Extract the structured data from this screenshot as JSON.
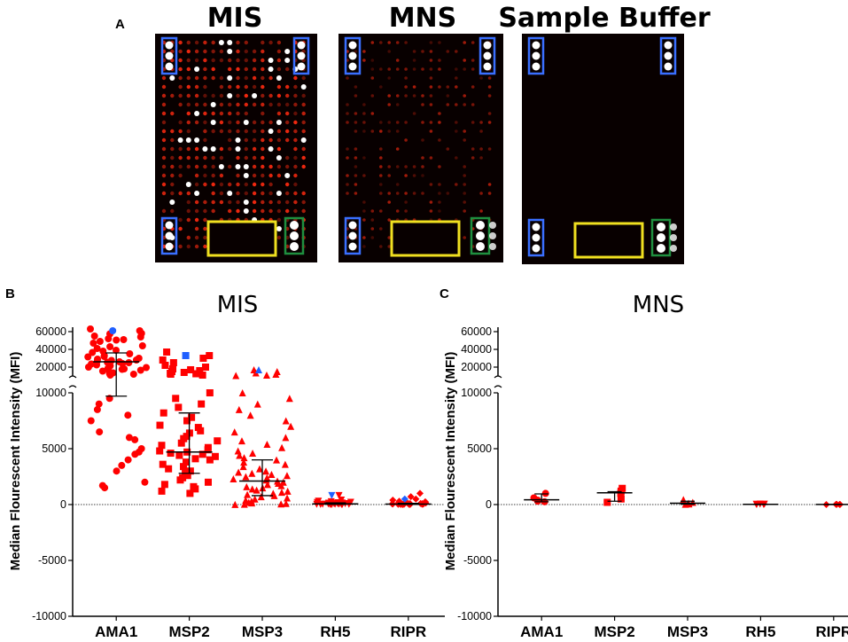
{
  "panel_a": {
    "letter": "A",
    "arrays": [
      {
        "title": "MIS",
        "id": "mis"
      },
      {
        "title": "MNS",
        "id": "mns"
      },
      {
        "title": "Sample Buffer",
        "id": "buffer"
      }
    ],
    "colors": {
      "background": "#080000",
      "spot": "#ff2a10",
      "spot_bright": "#ffffff",
      "reference_box": "#3a6fff",
      "blank_box": "#f0e020",
      "control_box": "#1f8f3f"
    }
  },
  "chart_data": [
    {
      "type": "scatter",
      "panel": "B",
      "title": "MIS",
      "ylabel": "Median Flourescent Intensity (MFI)",
      "categories": [
        "AMA1",
        "MSP2",
        "MSP3",
        "RH5",
        "RIPR"
      ],
      "markers": [
        "circle",
        "square",
        "triangle-up",
        "triangle-down",
        "diamond"
      ],
      "colors": {
        "points": "#ff0000",
        "highlight": "#1f5fff",
        "summary": "#000000"
      },
      "ylim_lower": [
        -10000,
        10000
      ],
      "yticks_lower": [
        -10000,
        -5000,
        0,
        5000,
        10000
      ],
      "ylim_upper": [
        10000,
        65000
      ],
      "yticks_upper": [
        20000,
        40000,
        60000
      ],
      "median": [
        26000,
        4700,
        2100,
        60,
        40
      ],
      "iqr_low": [
        9700,
        2800,
        800,
        20,
        10
      ],
      "iqr_high": [
        36000,
        8200,
        4000,
        150,
        110
      ],
      "points": [
        [
          61000,
          58000,
          63000,
          57500,
          54000,
          55000,
          52000,
          50500,
          51000,
          49000,
          47000,
          44000,
          43000,
          41000,
          39000,
          38000,
          36500,
          35000,
          33000,
          32000,
          31500,
          30000,
          29000,
          28000,
          27500,
          27000,
          26000,
          25500,
          25000,
          24000,
          23500,
          22500,
          21500,
          20000,
          19500,
          18500,
          18000,
          17500,
          16500,
          15500,
          14500,
          13500,
          12500,
          12000,
          11000,
          9500,
          9000,
          8500,
          8000,
          7500,
          6500,
          6000,
          5800,
          5000,
          4700,
          4500,
          4000,
          3500,
          3000,
          2000,
          1700,
          1500
        ],
        [
          37000,
          33000,
          30000,
          28000,
          25000,
          22000,
          20000,
          18000,
          17000,
          16000,
          15000,
          14000,
          13000,
          12500,
          12000,
          11000,
          10000,
          9500,
          9000,
          8700,
          8200,
          7800,
          7500,
          7100,
          6900,
          6600,
          6400,
          6100,
          5900,
          5700,
          5500,
          5300,
          5100,
          4900,
          4800,
          4700,
          4600,
          4500,
          4400,
          4300,
          4100,
          4000,
          3800,
          3600,
          3400,
          3200,
          3000,
          2800,
          2600,
          2400,
          2200,
          2000,
          1800,
          1600,
          1400,
          1200,
          1000
        ],
        [
          17000,
          15000,
          13500,
          12000,
          11000,
          10500,
          10000,
          9500,
          9000,
          8500,
          8000,
          7500,
          7000,
          6500,
          6000,
          5700,
          5400,
          5100,
          4800,
          4600,
          4400,
          4200,
          4000,
          3800,
          3600,
          3400,
          3200,
          3000,
          2900,
          2800,
          2700,
          2600,
          2500,
          2400,
          2300,
          2200,
          2100,
          2000,
          1900,
          1800,
          1700,
          1600,
          1500,
          1400,
          1300,
          1200,
          1100,
          1000,
          900,
          800,
          700,
          600,
          500,
          400,
          300,
          200,
          150,
          100,
          60,
          30,
          10
        ],
        [
          800,
          400,
          300,
          250,
          200,
          180,
          160,
          140,
          120,
          110,
          100,
          90,
          80,
          70,
          60,
          50,
          45,
          40,
          35,
          30,
          25,
          20,
          15,
          10,
          8,
          5,
          3,
          0
        ],
        [
          1000,
          700,
          500,
          400,
          300,
          250,
          200,
          180,
          160,
          140,
          120,
          100,
          90,
          80,
          70,
          60,
          50,
          40,
          30,
          25,
          20,
          15,
          10,
          5,
          0
        ]
      ],
      "highlight_points": [
        [
          61000
        ],
        [
          33000
        ],
        [
          17000
        ],
        [
          800
        ],
        [
          500
        ]
      ]
    },
    {
      "type": "scatter",
      "panel": "C",
      "title": "MNS",
      "ylabel": "Median Flourescent Intensity (MFI)",
      "categories": [
        "AMA1",
        "MSP2",
        "MSP3",
        "RH5",
        "RIPR"
      ],
      "markers": [
        "circle",
        "square",
        "triangle-up",
        "triangle-down",
        "diamond"
      ],
      "colors": {
        "points": "#ff0000",
        "summary": "#000000"
      },
      "ylim_lower": [
        -10000,
        10000
      ],
      "yticks_lower": [
        -10000,
        -5000,
        0,
        5000,
        10000
      ],
      "ylim_upper": [
        10000,
        65000
      ],
      "yticks_upper": [
        20000,
        40000,
        60000
      ],
      "median": [
        430,
        1050,
        120,
        20,
        10
      ],
      "iqr_low": [
        250,
        300,
        30,
        5,
        0
      ],
      "iqr_high": [
        950,
        1150,
        300,
        40,
        20
      ],
      "points": [
        [
          1000,
          600,
          400,
          300,
          250
        ],
        [
          1450,
          1200,
          1000,
          500,
          200
        ],
        [
          450,
          200,
          120,
          60,
          30
        ],
        [
          40,
          30,
          20,
          10,
          5
        ],
        [
          20,
          15,
          10,
          5,
          0
        ]
      ]
    }
  ]
}
